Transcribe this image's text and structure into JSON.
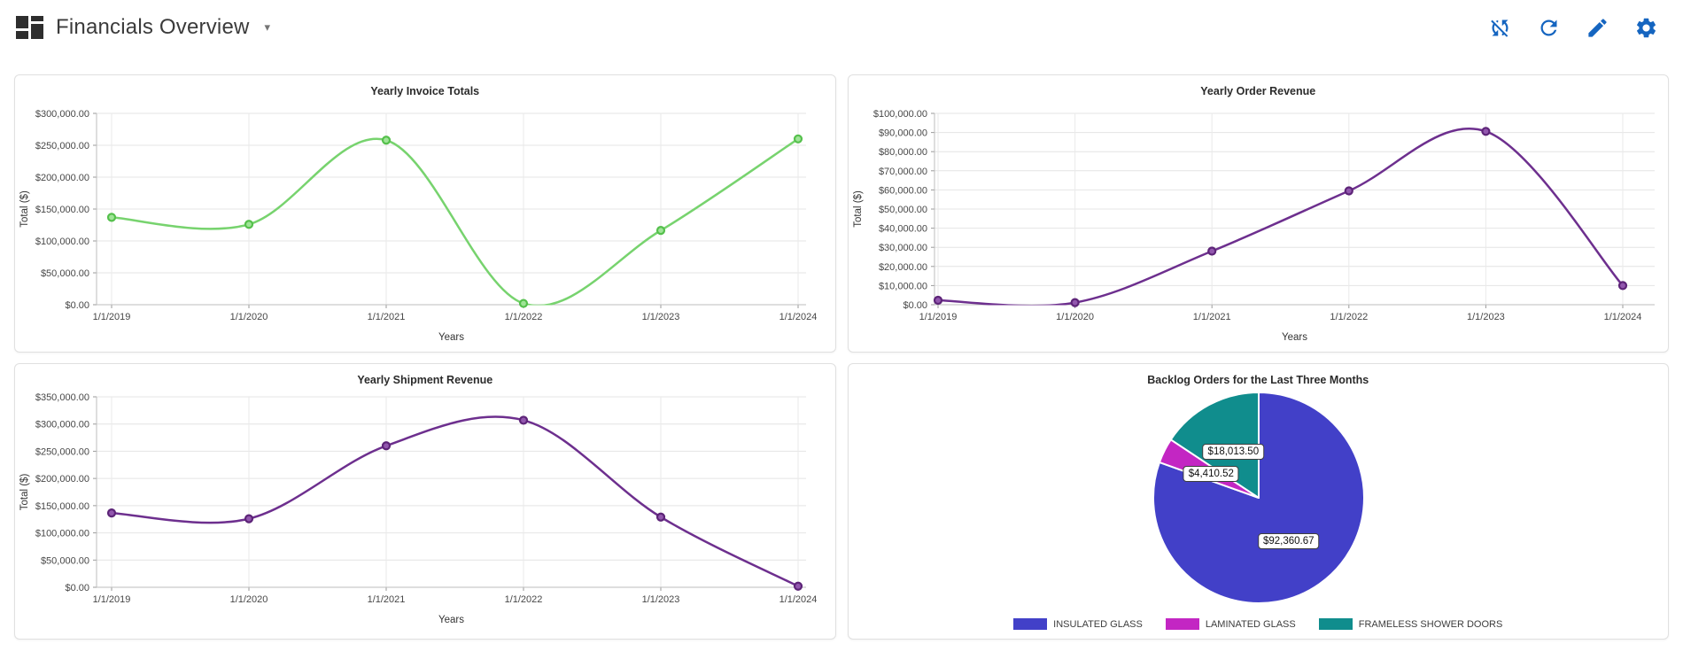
{
  "header": {
    "title": "Financials Overview",
    "caret": "▾"
  },
  "toolbar": {
    "color": "#1565c0",
    "buttons": [
      {
        "name": "sync-disabled"
      },
      {
        "name": "refresh"
      },
      {
        "name": "edit"
      },
      {
        "name": "settings"
      }
    ]
  },
  "chart_data": [
    {
      "type": "line",
      "title": "Yearly Invoice Totals",
      "xlabel": "Years",
      "ylabel": "Total ($)",
      "categories": [
        "1/1/2019",
        "1/1/2020",
        "1/1/2021",
        "1/1/2022",
        "1/1/2023",
        "1/1/2024"
      ],
      "values": [
        137000,
        126000,
        258000,
        2000,
        116500,
        260000
      ],
      "ylim": [
        0,
        300000
      ],
      "ytick_step": 50000,
      "tick_format": "currency_2dp",
      "grid": true,
      "line_color": "#77d36e",
      "marker_color": "#55c04c",
      "marker_fill": "#9fe497"
    },
    {
      "type": "line",
      "title": "Yearly Order Revenue",
      "xlabel": "Years",
      "ylabel": "Total ($)",
      "categories": [
        "1/1/2019",
        "1/1/2020",
        "1/1/2021",
        "1/1/2022",
        "1/1/2023",
        "1/1/2024"
      ],
      "values": [
        2300,
        1100,
        28000,
        59500,
        90600,
        10000
      ],
      "ylim": [
        0,
        100000
      ],
      "ytick_step": 10000,
      "tick_format": "currency_2dp",
      "grid": true,
      "line_color": "#6d2f8e",
      "marker_color": "#5d2478",
      "marker_fill": "#9257ae"
    },
    {
      "type": "line",
      "title": "Yearly Shipment Revenue",
      "xlabel": "Years",
      "ylabel": "Total ($)",
      "categories": [
        "1/1/2019",
        "1/1/2020",
        "1/1/2021",
        "1/1/2022",
        "1/1/2023",
        "1/1/2024"
      ],
      "values": [
        136500,
        126000,
        260000,
        307000,
        129000,
        2000
      ],
      "ylim": [
        0,
        350000
      ],
      "ytick_step": 50000,
      "tick_format": "currency_2dp",
      "grid": true,
      "line_color": "#6d2f8e",
      "marker_color": "#5d2478",
      "marker_fill": "#9257ae"
    },
    {
      "type": "pie",
      "title": "Backlog Orders for the Last Three Months",
      "start_angle": "top",
      "direction": "clockwise",
      "legend_position": "bottom",
      "slices": [
        {
          "label": "INSULATED GLASS",
          "value": 92360.67,
          "display": "$92,360.67",
          "color": "#4240c8"
        },
        {
          "label": "LAMINATED GLASS",
          "value": 4410.52,
          "display": "$4,410.52",
          "color": "#c326c3"
        },
        {
          "label": "FRAMELESS SHOWER DOORS",
          "value": 18013.5,
          "display": "$18,013.50",
          "color": "#108d8d"
        }
      ]
    }
  ]
}
